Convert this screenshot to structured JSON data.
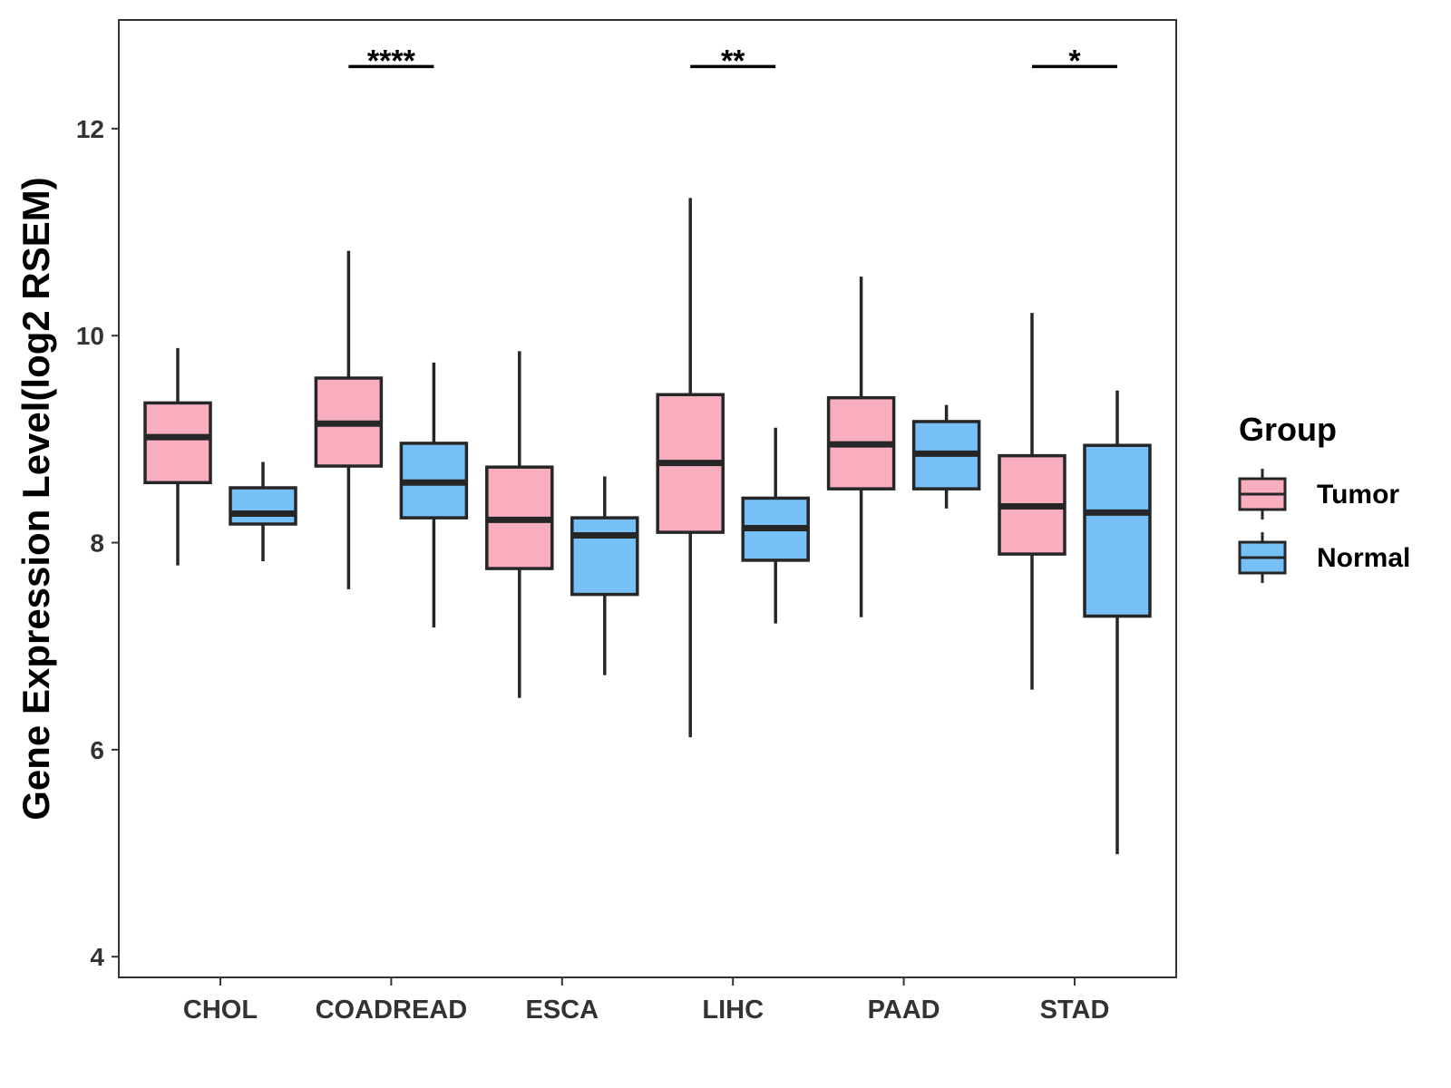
{
  "chart_data": {
    "type": "boxplot",
    "title": "",
    "xlabel": "",
    "ylabel": "Gene Expression Level(log2 RSEM)",
    "ylim": [
      3.8,
      13.05
    ],
    "yticks": [
      4,
      6,
      8,
      10,
      12
    ],
    "ytick_labels": [
      "4",
      "6",
      "8",
      "10",
      "12"
    ],
    "grid": false,
    "legend": {
      "title": "Group",
      "position": "right",
      "entries": [
        "Tumor",
        "Normal"
      ]
    },
    "colors": {
      "Tumor": "#F9AEC0",
      "Normal": "#76BFF7",
      "outline": "#262626",
      "axis": "#333333",
      "text": "#333333"
    },
    "categories": [
      "CHOL",
      "COADREAD",
      "ESCA",
      "LIHC",
      "PAAD",
      "STAD"
    ],
    "series": [
      {
        "name": "Tumor",
        "boxes": [
          {
            "whisker_low": 7.78,
            "q1": 8.58,
            "median": 9.02,
            "q3": 9.35,
            "whisker_high": 9.88
          },
          {
            "whisker_low": 7.55,
            "q1": 8.74,
            "median": 9.15,
            "q3": 9.59,
            "whisker_high": 10.82
          },
          {
            "whisker_low": 6.5,
            "q1": 7.75,
            "median": 8.22,
            "q3": 8.73,
            "whisker_high": 9.85
          },
          {
            "whisker_low": 6.12,
            "q1": 8.1,
            "median": 8.77,
            "q3": 9.43,
            "whisker_high": 11.33
          },
          {
            "whisker_low": 7.28,
            "q1": 8.52,
            "median": 8.95,
            "q3": 9.4,
            "whisker_high": 10.57
          },
          {
            "whisker_low": 6.58,
            "q1": 7.89,
            "median": 8.35,
            "q3": 8.84,
            "whisker_high": 10.22
          }
        ]
      },
      {
        "name": "Normal",
        "boxes": [
          {
            "whisker_low": 7.82,
            "q1": 8.18,
            "median": 8.28,
            "q3": 8.53,
            "whisker_high": 8.78
          },
          {
            "whisker_low": 7.18,
            "q1": 8.24,
            "median": 8.58,
            "q3": 8.96,
            "whisker_high": 9.74
          },
          {
            "whisker_low": 6.72,
            "q1": 7.5,
            "median": 8.07,
            "q3": 8.24,
            "whisker_high": 8.64
          },
          {
            "whisker_low": 7.22,
            "q1": 7.83,
            "median": 8.14,
            "q3": 8.43,
            "whisker_high": 9.11
          },
          {
            "whisker_low": 8.33,
            "q1": 8.52,
            "median": 8.86,
            "q3": 9.17,
            "whisker_high": 9.33
          },
          {
            "whisker_low": 4.99,
            "q1": 7.29,
            "median": 8.29,
            "q3": 8.94,
            "whisker_high": 9.47
          }
        ]
      }
    ],
    "significance": [
      {
        "category": "COADREAD",
        "label": "****",
        "y": 12.6
      },
      {
        "category": "LIHC",
        "label": "**",
        "y": 12.6
      },
      {
        "category": "STAD",
        "label": "*",
        "y": 12.6
      }
    ]
  }
}
